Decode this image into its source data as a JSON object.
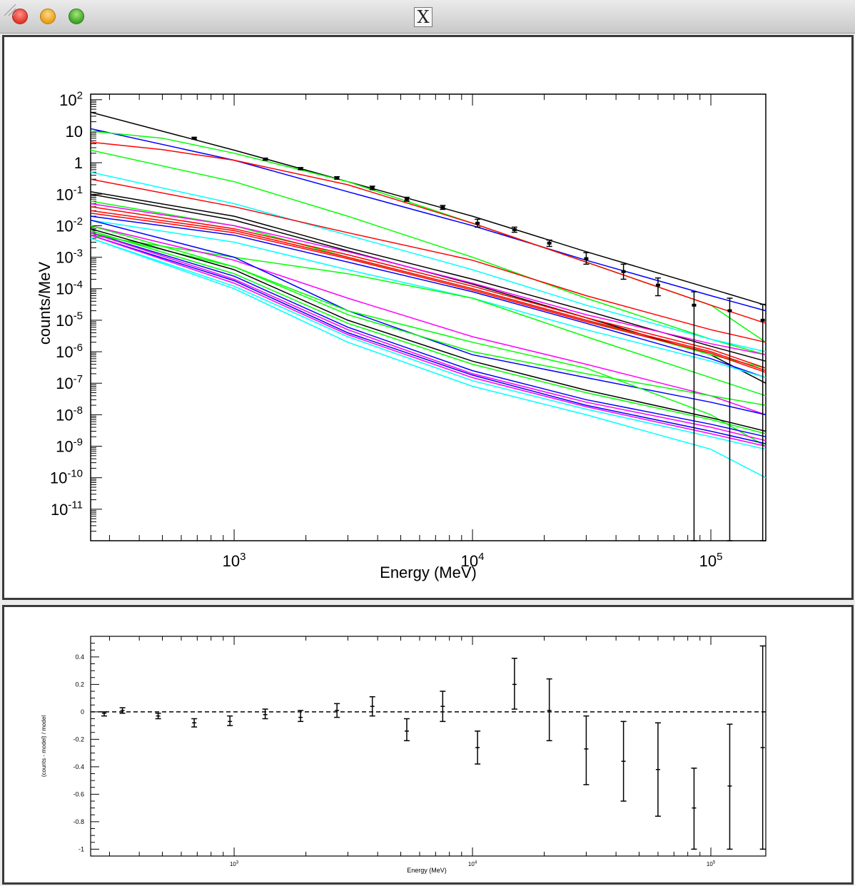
{
  "window": {
    "title_icon": "X",
    "colors": {
      "titlebar": "#d6d6d6",
      "frame": "#3a3a3a",
      "canvas": "#ffffff"
    }
  },
  "chart_data": [
    {
      "type": "line",
      "xlabel": "Energy (MeV)",
      "ylabel": "counts/MeV",
      "xscale": "log",
      "yscale": "log",
      "xlim": [
        250,
        170000
      ],
      "ylim": [
        1e-12,
        150
      ],
      "x_ticks": [
        {
          "value": 1000,
          "mantissa": "10",
          "exp": "3"
        },
        {
          "value": 10000,
          "mantissa": "10",
          "exp": "4"
        },
        {
          "value": 100000,
          "mantissa": "10",
          "exp": "5"
        }
      ],
      "y_ticks": [
        {
          "value": 100,
          "mantissa": "10",
          "exp": "2"
        },
        {
          "value": 10,
          "mantissa": "10",
          "exp": ""
        },
        {
          "value": 1,
          "mantissa": "1",
          "exp": ""
        },
        {
          "value": 0.1,
          "mantissa": "10",
          "exp": "-1"
        },
        {
          "value": 0.01,
          "mantissa": "10",
          "exp": "-2"
        },
        {
          "value": 0.001,
          "mantissa": "10",
          "exp": "-3"
        },
        {
          "value": 0.0001,
          "mantissa": "10",
          "exp": "-4"
        },
        {
          "value": 1e-05,
          "mantissa": "10",
          "exp": "-5"
        },
        {
          "value": 1e-06,
          "mantissa": "10",
          "exp": "-6"
        },
        {
          "value": 1e-07,
          "mantissa": "10",
          "exp": "-7"
        },
        {
          "value": 1e-08,
          "mantissa": "10",
          "exp": "-8"
        },
        {
          "value": 1e-09,
          "mantissa": "10",
          "exp": "-9"
        },
        {
          "value": 1e-10,
          "mantissa": "10",
          "exp": "-10"
        },
        {
          "value": 1e-11,
          "mantissa": "10",
          "exp": "-11"
        }
      ],
      "series": [
        {
          "color": "#000000",
          "x": [
            250,
            1000,
            3000,
            10000,
            30000,
            100000,
            170000
          ],
          "y": [
            40,
            2.5,
            0.25,
            0.02,
            0.0015,
            0.0001,
            3e-05
          ]
        },
        {
          "color": "#0000ff",
          "x": [
            250,
            1000,
            3000,
            10000,
            30000,
            100000,
            170000
          ],
          "y": [
            12,
            1.2,
            0.12,
            0.01,
            0.0008,
            6e-05,
            2e-05
          ]
        },
        {
          "color": "#00ff00",
          "x": [
            250,
            500,
            1000,
            3000,
            10000,
            30000,
            100000,
            170000
          ],
          "y": [
            10,
            6,
            2,
            0.25,
            0.012,
            0.0007,
            3e-05,
            2e-06
          ]
        },
        {
          "color": "#ff0000",
          "x": [
            250,
            500,
            1000,
            3000,
            10000,
            30000,
            100000,
            170000
          ],
          "y": [
            4.5,
            2.6,
            1.2,
            0.2,
            0.012,
            0.0007,
            3e-05,
            8e-06
          ]
        },
        {
          "color": "#00ff00",
          "x": [
            250,
            1000,
            3000,
            10000,
            30000,
            100000,
            170000
          ],
          "y": [
            2.5,
            0.25,
            0.02,
            0.001,
            5e-05,
            2.5e-06,
            8e-07
          ]
        },
        {
          "color": "#00ffff",
          "x": [
            250,
            1000,
            3000,
            10000,
            30000,
            100000,
            170000
          ],
          "y": [
            0.5,
            0.05,
            0.005,
            0.0004,
            3e-05,
            2.5e-06,
            1e-06
          ]
        },
        {
          "color": "#ff0000",
          "x": [
            250,
            1000,
            3000,
            10000,
            30000,
            100000,
            170000
          ],
          "y": [
            0.3,
            0.04,
            0.006,
            0.0008,
            6e-05,
            5e-06,
            2e-06
          ]
        },
        {
          "color": "#000000",
          "x": [
            250,
            1000,
            3000,
            10000,
            30000,
            100000,
            170000
          ],
          "y": [
            0.12,
            0.02,
            0.002,
            0.0002,
            2e-05,
            1.5e-06,
            5e-07
          ]
        },
        {
          "color": "#000000",
          "x": [
            250,
            1000,
            3000,
            10000,
            30000,
            100000,
            170000
          ],
          "y": [
            0.1,
            0.015,
            0.0016,
            0.00014,
            1.2e-05,
            8e-07,
            1e-07
          ]
        },
        {
          "color": "#00ff00",
          "x": [
            250,
            1000,
            3000,
            10000,
            30000,
            100000,
            170000
          ],
          "y": [
            0.06,
            0.01,
            0.001,
            0.0001,
            1e-05,
            8e-07,
            3e-07
          ]
        },
        {
          "color": "#ff00ff",
          "x": [
            250,
            1000,
            3000,
            10000,
            30000,
            100000,
            170000
          ],
          "y": [
            0.05,
            0.01,
            0.0015,
            0.00015,
            1.5e-05,
            1.8e-06,
            8e-07
          ]
        },
        {
          "color": "#ff0000",
          "x": [
            250,
            1000,
            3000,
            10000,
            30000,
            100000,
            170000
          ],
          "y": [
            0.04,
            0.008,
            0.0012,
            0.00012,
            1.2e-05,
            1.2e-06,
            3e-07
          ]
        },
        {
          "color": "#ff0000",
          "x": [
            250,
            1000,
            3000,
            10000,
            30000,
            100000,
            170000
          ],
          "y": [
            0.03,
            0.007,
            0.001,
            0.0001,
            1e-05,
            1e-06,
            2.5e-07
          ]
        },
        {
          "color": "#ff0000",
          "x": [
            250,
            1000,
            3000,
            10000,
            30000,
            100000,
            170000
          ],
          "y": [
            0.025,
            0.006,
            0.0009,
            9e-05,
            9e-06,
            9e-07,
            2.2e-07
          ]
        },
        {
          "color": "#0000ff",
          "x": [
            250,
            1000,
            3000,
            10000,
            30000,
            100000,
            170000
          ],
          "y": [
            0.02,
            0.005,
            0.0007,
            8e-05,
            8e-06,
            6e-07,
            1.5e-07
          ]
        },
        {
          "color": "#00ffff",
          "x": [
            250,
            1000,
            3000,
            10000,
            30000,
            100000,
            170000
          ],
          "y": [
            0.015,
            0.003,
            0.0004,
            5e-05,
            5e-06,
            5e-07,
            1.5e-07
          ]
        },
        {
          "color": "#00ff00",
          "x": [
            250,
            1000,
            3000,
            10000,
            30000,
            100000,
            170000
          ],
          "y": [
            0.005,
            0.001,
            0.0003,
            5e-05,
            3e-06,
            1.5e-07,
            4e-08
          ]
        },
        {
          "color": "#ff00ff",
          "x": [
            250,
            1000,
            3000,
            10000,
            30000,
            100000,
            170000
          ],
          "y": [
            0.01,
            0.0008,
            5e-05,
            3e-06,
            4e-07,
            4e-08,
            1e-08
          ]
        },
        {
          "color": "#0000ff",
          "x": [
            250,
            1000,
            3000,
            10000,
            30000,
            100000,
            170000
          ],
          "y": [
            0.015,
            0.001,
            2e-05,
            8e-07,
            1.5e-07,
            2.5e-08,
            1e-08
          ]
        },
        {
          "color": "#00ff00",
          "x": [
            250,
            1000,
            3000,
            10000,
            30000,
            100000,
            170000
          ],
          "y": [
            0.01,
            0.0005,
            1.5e-05,
            1e-06,
            2e-07,
            4e-08,
            2e-08
          ]
        },
        {
          "color": "#00ff00",
          "x": [
            250,
            1000,
            3000,
            10000,
            30000,
            100000,
            170000
          ],
          "y": [
            0.006,
            0.0005,
            2e-05,
            2e-06,
            3e-07,
            1e-08,
            1e-09
          ]
        },
        {
          "color": "#000000",
          "x": [
            250,
            1000,
            3000,
            10000,
            30000,
            100000,
            170000
          ],
          "y": [
            0.008,
            0.0004,
            1e-05,
            5e-07,
            6e-08,
            8e-09,
            3e-09
          ]
        },
        {
          "color": "#00ff00",
          "x": [
            250,
            1000,
            3000,
            10000,
            30000,
            100000,
            170000
          ],
          "y": [
            0.007,
            0.0003,
            8e-06,
            4e-07,
            5e-08,
            7e-09,
            2.5e-09
          ]
        },
        {
          "color": "#0000ff",
          "x": [
            250,
            1000,
            3000,
            10000,
            30000,
            100000,
            170000
          ],
          "y": [
            0.006,
            0.00025,
            6e-06,
            2.5e-07,
            3e-08,
            5e-09,
            2e-09
          ]
        },
        {
          "color": "#ff00ff",
          "x": [
            250,
            1000,
            3000,
            10000,
            30000,
            100000,
            170000
          ],
          "y": [
            0.006,
            0.0002,
            5e-06,
            2e-07,
            2.5e-08,
            4e-09,
            1.5e-09
          ]
        },
        {
          "color": "#0000ff",
          "x": [
            250,
            1000,
            3000,
            10000,
            30000,
            100000,
            170000
          ],
          "y": [
            0.005,
            0.00018,
            4e-06,
            1.8e-07,
            2e-08,
            3e-09,
            1.2e-09
          ]
        },
        {
          "color": "#ff00ff",
          "x": [
            250,
            1000,
            3000,
            10000,
            30000,
            100000,
            170000
          ],
          "y": [
            0.005,
            0.00015,
            3.5e-06,
            1.5e-07,
            1.8e-08,
            2.5e-09,
            1e-09
          ]
        },
        {
          "color": "#00ffff",
          "x": [
            250,
            1000,
            3000,
            10000,
            30000,
            100000,
            170000
          ],
          "y": [
            0.004,
            0.00012,
            3e-06,
            1.2e-07,
            1.5e-08,
            2e-09,
            8e-10
          ]
        },
        {
          "color": "#00ffff",
          "x": [
            250,
            1000,
            3000,
            10000,
            30000,
            100000,
            170000
          ],
          "y": [
            0.004,
            0.0001,
            2e-06,
            8e-08,
            1e-08,
            8e-10,
            1e-10
          ]
        }
      ],
      "data_points": {
        "color": "#000000",
        "points": [
          {
            "x": 680,
            "y": 6,
            "lo": 5.6,
            "hi": 6.4
          },
          {
            "x": 1350,
            "y": 1.3,
            "lo": 1.2,
            "hi": 1.4
          },
          {
            "x": 1900,
            "y": 0.65,
            "lo": 0.6,
            "hi": 0.7
          },
          {
            "x": 2700,
            "y": 0.33,
            "lo": 0.3,
            "hi": 0.36
          },
          {
            "x": 3800,
            "y": 0.16,
            "lo": 0.14,
            "hi": 0.18
          },
          {
            "x": 5300,
            "y": 0.07,
            "lo": 0.06,
            "hi": 0.08
          },
          {
            "x": 7500,
            "y": 0.038,
            "lo": 0.033,
            "hi": 0.044
          },
          {
            "x": 10500,
            "y": 0.012,
            "lo": 0.009,
            "hi": 0.016
          },
          {
            "x": 15000,
            "y": 0.0075,
            "lo": 0.0062,
            "hi": 0.009
          },
          {
            "x": 21000,
            "y": 0.0028,
            "lo": 0.0022,
            "hi": 0.0035
          },
          {
            "x": 30000,
            "y": 0.0009,
            "lo": 0.0006,
            "hi": 0.0014
          },
          {
            "x": 43000,
            "y": 0.00035,
            "lo": 0.0002,
            "hi": 0.0006
          },
          {
            "x": 60000,
            "y": 0.00013,
            "lo": 6e-05,
            "hi": 0.00022
          },
          {
            "x": 85000,
            "y": 3e-05,
            "lo": 1e-12,
            "hi": 8e-05
          },
          {
            "x": 120000,
            "y": 2e-05,
            "lo": 1e-12,
            "hi": 5e-05
          },
          {
            "x": 165000,
            "y": 1e-05,
            "lo": 1e-12,
            "hi": 3.2e-05
          }
        ]
      }
    },
    {
      "type": "scatter",
      "xlabel": "Energy (MeV)",
      "ylabel": "(counts - model) / model",
      "xscale": "log",
      "xlim": [
        250,
        170000
      ],
      "ylim": [
        -1.05,
        0.55
      ],
      "y_ticks": [
        0.4,
        0.2,
        0,
        -0.2,
        -0.4,
        -0.6,
        -0.8,
        -1
      ],
      "y_tick_labels": [
        "0.4",
        "0.2",
        "0",
        "-0.2",
        "-0.4",
        "-0.6",
        "-0.8",
        "-1"
      ],
      "x_ticks": [
        {
          "value": 1000,
          "mantissa": "10",
          "exp": "3"
        },
        {
          "value": 10000,
          "mantissa": "10",
          "exp": "4"
        },
        {
          "value": 100000,
          "mantissa": "10",
          "exp": "5"
        }
      ],
      "reference_line": {
        "y": 0,
        "style": "dashed"
      },
      "points": [
        {
          "x": 285,
          "y": -0.01,
          "lo": -0.03,
          "hi": 0.0
        },
        {
          "x": 340,
          "y": 0.01,
          "lo": -0.01,
          "hi": 0.03
        },
        {
          "x": 480,
          "y": -0.03,
          "lo": -0.05,
          "hi": -0.01
        },
        {
          "x": 680,
          "y": -0.08,
          "lo": -0.11,
          "hi": -0.05
        },
        {
          "x": 960,
          "y": -0.07,
          "lo": -0.1,
          "hi": -0.03
        },
        {
          "x": 1350,
          "y": -0.02,
          "lo": -0.05,
          "hi": 0.02
        },
        {
          "x": 1900,
          "y": -0.04,
          "lo": -0.07,
          "hi": 0.01
        },
        {
          "x": 2700,
          "y": 0.01,
          "lo": -0.04,
          "hi": 0.06
        },
        {
          "x": 3800,
          "y": 0.04,
          "lo": -0.03,
          "hi": 0.11
        },
        {
          "x": 5300,
          "y": -0.14,
          "lo": -0.21,
          "hi": -0.05
        },
        {
          "x": 7500,
          "y": 0.04,
          "lo": -0.07,
          "hi": 0.15
        },
        {
          "x": 10500,
          "y": -0.26,
          "lo": -0.38,
          "hi": -0.14
        },
        {
          "x": 15000,
          "y": 0.2,
          "lo": 0.02,
          "hi": 0.39
        },
        {
          "x": 21000,
          "y": 0.01,
          "lo": -0.21,
          "hi": 0.24
        },
        {
          "x": 30000,
          "y": -0.27,
          "lo": -0.53,
          "hi": -0.03
        },
        {
          "x": 43000,
          "y": -0.36,
          "lo": -0.65,
          "hi": -0.07
        },
        {
          "x": 60000,
          "y": -0.42,
          "lo": -0.76,
          "hi": -0.08
        },
        {
          "x": 85000,
          "y": -0.7,
          "lo": -1.0,
          "hi": -0.41
        },
        {
          "x": 120000,
          "y": -0.54,
          "lo": -1.0,
          "hi": -0.09
        },
        {
          "x": 165000,
          "y": -0.26,
          "lo": -1.0,
          "hi": 0.48
        }
      ]
    }
  ]
}
